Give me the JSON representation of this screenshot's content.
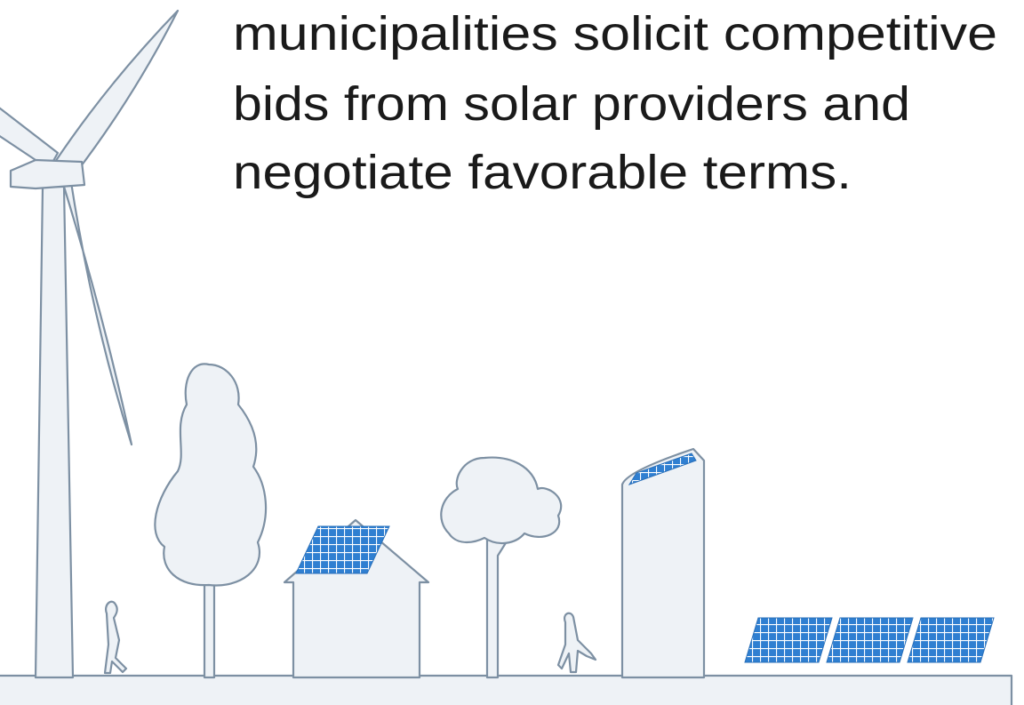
{
  "text": {
    "lines": [
      "municipalities solicit competitive",
      "bids from solar providers and",
      "negotiate favorable terms."
    ]
  }
}
